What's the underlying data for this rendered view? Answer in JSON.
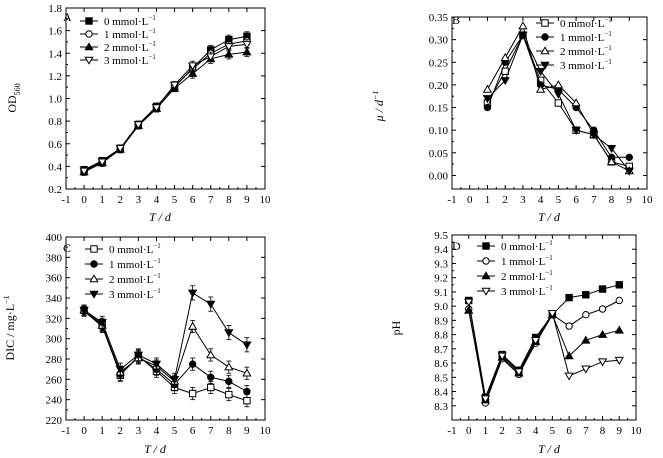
{
  "chart_data": [
    {
      "type": "line",
      "panel_label": "A",
      "xlabel": "T / d",
      "ylabel": "OD560",
      "ylabel_main": "OD",
      "ylabel_sub": "560",
      "xlim": [
        -1,
        10
      ],
      "ylim": [
        0.2,
        1.8
      ],
      "xticks": [
        -1,
        0,
        1,
        2,
        3,
        4,
        5,
        6,
        7,
        8,
        9,
        10
      ],
      "yticks": [
        0.2,
        0.4,
        0.6,
        0.8,
        1.0,
        1.2,
        1.4,
        1.6,
        1.8
      ],
      "ytick_labels": [
        "0.2",
        "0.4",
        "0.6",
        "0.8",
        "1.0",
        "1.2",
        "1.4",
        "1.6",
        "1.8"
      ],
      "x": [
        0,
        1,
        2,
        3,
        4,
        5,
        6,
        7,
        8,
        9
      ],
      "series": [
        {
          "name": "0 mmol·L",
          "marker": "square-filled",
          "values": [
            0.37,
            0.45,
            0.56,
            0.77,
            0.93,
            1.1,
            1.27,
            1.43,
            1.52,
            1.55
          ],
          "errors": [
            0.03,
            0.03,
            0.03,
            0.03,
            0.03,
            0.03,
            0.04,
            0.04,
            0.04,
            0.04
          ]
        },
        {
          "name": "1 mmol·L",
          "marker": "circle-open",
          "values": [
            0.36,
            0.44,
            0.55,
            0.76,
            0.92,
            1.11,
            1.26,
            1.4,
            1.48,
            1.51
          ],
          "errors": [
            0.03,
            0.03,
            0.03,
            0.03,
            0.03,
            0.03,
            0.04,
            0.04,
            0.04,
            0.04
          ]
        },
        {
          "name": "2 mmol·L",
          "marker": "triangle-up-filled",
          "values": [
            0.35,
            0.43,
            0.55,
            0.76,
            0.91,
            1.09,
            1.22,
            1.35,
            1.39,
            1.41
          ],
          "errors": [
            0.03,
            0.03,
            0.03,
            0.03,
            0.03,
            0.03,
            0.04,
            0.04,
            0.04,
            0.04
          ]
        },
        {
          "name": "3 mmol·L",
          "marker": "triangle-down-open",
          "values": [
            0.36,
            0.44,
            0.56,
            0.77,
            0.92,
            1.12,
            1.29,
            1.37,
            1.46,
            1.48
          ],
          "errors": [
            0.03,
            0.03,
            0.03,
            0.03,
            0.03,
            0.03,
            0.04,
            0.04,
            0.04,
            0.04
          ]
        }
      ]
    },
    {
      "type": "line",
      "panel_label": "B",
      "xlabel": "T / d",
      "ylabel": "μ / d",
      "ylabel_main": "μ / d",
      "ylabel_sup": "−1",
      "xlim": [
        -1,
        10
      ],
      "ylim": [
        -0.03,
        0.35
      ],
      "xticks": [
        -1,
        0,
        1,
        2,
        3,
        4,
        5,
        6,
        7,
        8,
        9,
        10
      ],
      "yticks": [
        0.0,
        0.05,
        0.1,
        0.15,
        0.2,
        0.25,
        0.3,
        0.35
      ],
      "ytick_labels": [
        "0.00",
        "0.05",
        "0.10",
        "0.15",
        "0.20",
        "0.25",
        "0.30",
        "0.35"
      ],
      "x": [
        1,
        2,
        3,
        4,
        5,
        6,
        7,
        8,
        9
      ],
      "series": [
        {
          "name": "0 mmol·L",
          "marker": "square-open",
          "values": [
            0.16,
            0.23,
            0.31,
            0.21,
            0.16,
            0.1,
            0.09,
            0.03,
            0.02
          ]
        },
        {
          "name": "1 mmol·L",
          "marker": "circle-filled",
          "values": [
            0.15,
            0.25,
            0.31,
            0.2,
            0.19,
            0.15,
            0.1,
            0.04,
            0.04
          ]
        },
        {
          "name": "2 mmol·L",
          "marker": "triangle-up-open",
          "values": [
            0.19,
            0.26,
            0.33,
            0.19,
            0.2,
            0.16,
            0.09,
            0.03,
            0.01
          ]
        },
        {
          "name": "3 mmol·L",
          "marker": "triangle-down-filled",
          "values": [
            0.17,
            0.21,
            0.31,
            0.23,
            0.18,
            0.1,
            0.09,
            0.06,
            0.01
          ]
        }
      ]
    },
    {
      "type": "line",
      "panel_label": "C",
      "xlabel": "T / d",
      "ylabel": "DIC / mg·L",
      "ylabel_main": "DIC / mg·L",
      "ylabel_sup": "−1",
      "xlim": [
        -1,
        10
      ],
      "ylim": [
        220,
        400
      ],
      "xticks": [
        -1,
        0,
        1,
        2,
        3,
        4,
        5,
        6,
        7,
        8,
        9,
        10
      ],
      "yticks": [
        220,
        240,
        260,
        280,
        300,
        320,
        340,
        360,
        380,
        400
      ],
      "ytick_labels": [
        "220",
        "240",
        "260",
        "280",
        "300",
        "320",
        "340",
        "360",
        "380",
        "400"
      ],
      "x": [
        0,
        1,
        2,
        3,
        4,
        5,
        6,
        7,
        8,
        9
      ],
      "series": [
        {
          "name": "0 mmol·L",
          "marker": "square-open",
          "values": [
            328,
            314,
            264,
            283,
            268,
            252,
            246,
            252,
            245,
            239
          ],
          "errors": [
            5,
            6,
            6,
            6,
            6,
            6,
            6,
            6,
            6,
            6
          ]
        },
        {
          "name": "1 mmol·L",
          "marker": "circle-filled",
          "values": [
            327,
            312,
            265,
            282,
            270,
            255,
            275,
            262,
            258,
            248
          ],
          "errors": [
            5,
            6,
            6,
            6,
            6,
            6,
            6,
            6,
            6,
            6
          ]
        },
        {
          "name": "2 mmol·L",
          "marker": "triangle-up-open",
          "values": [
            328,
            313,
            267,
            281,
            273,
            258,
            312,
            284,
            272,
            266
          ],
          "errors": [
            5,
            6,
            6,
            6,
            6,
            6,
            6,
            6,
            6,
            6
          ]
        },
        {
          "name": "3 mmol·L",
          "marker": "triangle-down-filled",
          "values": [
            328,
            316,
            270,
            284,
            275,
            260,
            345,
            334,
            306,
            294
          ],
          "errors": [
            5,
            6,
            6,
            6,
            6,
            6,
            7,
            7,
            7,
            7
          ]
        }
      ]
    },
    {
      "type": "line",
      "panel_label": "D",
      "xlabel": "T / d",
      "ylabel": "pH",
      "ylabel_main": "pH",
      "xlim": [
        -1,
        10
      ],
      "ylim": [
        8.2,
        9.5
      ],
      "xticks": [
        -1,
        0,
        1,
        2,
        3,
        4,
        5,
        6,
        7,
        8,
        9,
        10
      ],
      "yticks": [
        8.3,
        8.4,
        8.5,
        8.6,
        8.7,
        8.8,
        8.9,
        9.0,
        9.1,
        9.2,
        9.3,
        9.4,
        9.5
      ],
      "ytick_labels": [
        "8.3",
        "8.4",
        "8.5",
        "8.6",
        "8.7",
        "8.8",
        "8.9",
        "9.0",
        "9.1",
        "9.2",
        "9.3",
        "9.4",
        "9.5"
      ],
      "x": [
        0,
        1,
        2,
        3,
        4,
        5,
        6,
        7,
        8,
        9
      ],
      "series": [
        {
          "name": "0 mmol·L",
          "marker": "square-filled",
          "values": [
            9.04,
            8.36,
            8.66,
            8.55,
            8.78,
            8.94,
            9.06,
            9.08,
            9.12,
            9.15
          ]
        },
        {
          "name": "1 mmol·L",
          "marker": "circle-open",
          "values": [
            8.98,
            8.32,
            8.63,
            8.52,
            8.74,
            8.94,
            8.86,
            8.94,
            8.98,
            9.04
          ]
        },
        {
          "name": "2 mmol·L",
          "marker": "triangle-up-filled",
          "values": [
            8.97,
            8.34,
            8.64,
            8.53,
            8.75,
            8.94,
            8.65,
            8.76,
            8.8,
            8.83
          ]
        },
        {
          "name": "3 mmol·L",
          "marker": "triangle-down-open",
          "values": [
            9.03,
            8.35,
            8.65,
            8.54,
            8.76,
            8.95,
            8.51,
            8.56,
            8.61,
            8.62
          ]
        }
      ]
    }
  ],
  "legend_unit_sup": "−1"
}
